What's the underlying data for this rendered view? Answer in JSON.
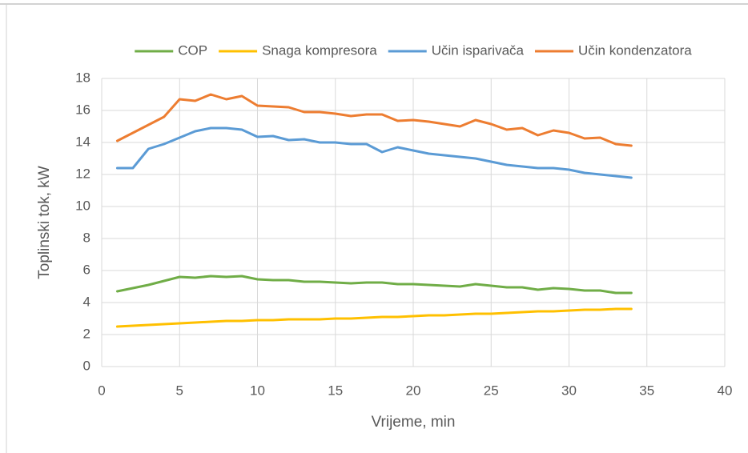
{
  "chart_data": {
    "type": "line",
    "xlabel": "Vrijeme, min",
    "ylabel": "Toplinski tok, kW",
    "x": [
      1,
      2,
      3,
      4,
      5,
      6,
      7,
      8,
      9,
      10,
      11,
      12,
      13,
      14,
      15,
      16,
      17,
      18,
      19,
      20,
      21,
      22,
      23,
      24,
      25,
      26,
      27,
      28,
      29,
      30,
      31,
      32,
      33,
      34
    ],
    "series": [
      {
        "name": "COP",
        "color": "#70ad47",
        "values": [
          4.7,
          4.9,
          5.1,
          5.35,
          5.6,
          5.55,
          5.65,
          5.6,
          5.65,
          5.45,
          5.4,
          5.4,
          5.3,
          5.3,
          5.25,
          5.2,
          5.25,
          5.25,
          5.15,
          5.15,
          5.1,
          5.05,
          5.0,
          5.15,
          5.05,
          4.95,
          4.95,
          4.8,
          4.9,
          4.85,
          4.75,
          4.75,
          4.6,
          4.6
        ]
      },
      {
        "name": "Snaga kompresora",
        "color": "#ffc000",
        "values": [
          2.5,
          2.55,
          2.6,
          2.65,
          2.7,
          2.75,
          2.8,
          2.85,
          2.85,
          2.9,
          2.9,
          2.95,
          2.95,
          2.95,
          3.0,
          3.0,
          3.05,
          3.1,
          3.1,
          3.15,
          3.2,
          3.2,
          3.25,
          3.3,
          3.3,
          3.35,
          3.4,
          3.45,
          3.45,
          3.5,
          3.55,
          3.55,
          3.6,
          3.6
        ]
      },
      {
        "name": "Učin isparivača",
        "color": "#5b9bd5",
        "values": [
          12.4,
          12.4,
          13.6,
          13.9,
          14.3,
          14.7,
          14.9,
          14.9,
          14.8,
          14.35,
          14.4,
          14.15,
          14.2,
          14.0,
          14.0,
          13.9,
          13.9,
          13.4,
          13.7,
          13.5,
          13.3,
          13.2,
          13.1,
          13.0,
          12.8,
          12.6,
          12.5,
          12.4,
          12.4,
          12.3,
          12.1,
          12.0,
          11.9,
          11.8
        ]
      },
      {
        "name": "Učin kondenzatora",
        "color": "#ed7d31",
        "values": [
          14.1,
          14.6,
          15.1,
          15.6,
          16.7,
          16.6,
          17.0,
          16.7,
          16.9,
          16.3,
          16.25,
          16.2,
          15.9,
          15.9,
          15.8,
          15.65,
          15.75,
          15.75,
          15.35,
          15.4,
          15.3,
          15.15,
          15.0,
          15.4,
          15.15,
          14.8,
          14.9,
          14.45,
          14.75,
          14.6,
          14.25,
          14.3,
          13.9,
          13.8
        ]
      }
    ],
    "xlim": [
      0,
      40
    ],
    "xticks": [
      0,
      5,
      10,
      15,
      20,
      25,
      30,
      35,
      40
    ],
    "ylim": [
      0,
      18
    ],
    "yticks": [
      0,
      2,
      4,
      6,
      8,
      10,
      12,
      14,
      16,
      18
    ],
    "grid": true,
    "legend": "top"
  }
}
